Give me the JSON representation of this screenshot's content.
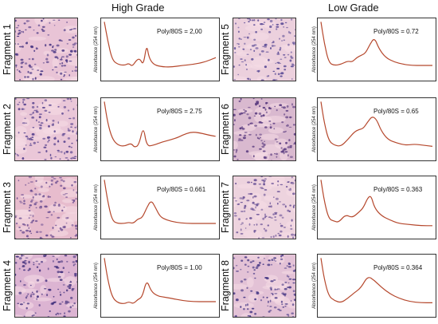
{
  "titles": {
    "high": "High Grade",
    "low": "Low Grade"
  },
  "yaxis_label": "Absorbance (254 nm)",
  "colors": {
    "trace": "#b5472c",
    "frame": "#333333"
  },
  "fragments": [
    {
      "label": "Fragment 1",
      "ratio": "Poly/80S = 2,00",
      "tissue": "#e9c4d6",
      "cells": "#4e3a86",
      "curve": [
        [
          0,
          0.02
        ],
        [
          0.03,
          0.35
        ],
        [
          0.07,
          0.7
        ],
        [
          0.12,
          0.78
        ],
        [
          0.18,
          0.8
        ],
        [
          0.22,
          0.76
        ],
        [
          0.25,
          0.82
        ],
        [
          0.29,
          0.7
        ],
        [
          0.32,
          0.68
        ],
        [
          0.35,
          0.8
        ],
        [
          0.38,
          0.42
        ],
        [
          0.4,
          0.66
        ],
        [
          0.44,
          0.78
        ],
        [
          0.5,
          0.82
        ],
        [
          0.6,
          0.83
        ],
        [
          0.7,
          0.8
        ],
        [
          0.8,
          0.78
        ],
        [
          0.9,
          0.74
        ],
        [
          1.0,
          0.66
        ]
      ]
    },
    {
      "label": "Fragment 2",
      "ratio": "Poly/80S = 2.75",
      "tissue": "#eac7d8",
      "cells": "#5a4590",
      "curve": [
        [
          0,
          0.02
        ],
        [
          0.03,
          0.4
        ],
        [
          0.07,
          0.68
        ],
        [
          0.12,
          0.8
        ],
        [
          0.18,
          0.82
        ],
        [
          0.24,
          0.76
        ],
        [
          0.27,
          0.84
        ],
        [
          0.31,
          0.8
        ],
        [
          0.35,
          0.45
        ],
        [
          0.38,
          0.82
        ],
        [
          0.44,
          0.8
        ],
        [
          0.52,
          0.74
        ],
        [
          0.6,
          0.7
        ],
        [
          0.66,
          0.66
        ],
        [
          0.7,
          0.62
        ],
        [
          0.78,
          0.56
        ],
        [
          0.86,
          0.58
        ],
        [
          0.94,
          0.62
        ],
        [
          1.0,
          0.64
        ]
      ]
    },
    {
      "label": "Fragment 3",
      "ratio": "Poly/80S = 0.661",
      "tissue": "#e7bccd",
      "cells": "#6d4f92",
      "curve": [
        [
          0,
          0.02
        ],
        [
          0.03,
          0.4
        ],
        [
          0.07,
          0.75
        ],
        [
          0.12,
          0.8
        ],
        [
          0.18,
          0.8
        ],
        [
          0.22,
          0.78
        ],
        [
          0.26,
          0.8
        ],
        [
          0.3,
          0.72
        ],
        [
          0.34,
          0.7
        ],
        [
          0.38,
          0.52
        ],
        [
          0.42,
          0.38
        ],
        [
          0.46,
          0.52
        ],
        [
          0.5,
          0.68
        ],
        [
          0.56,
          0.74
        ],
        [
          0.64,
          0.78
        ],
        [
          0.74,
          0.8
        ],
        [
          0.84,
          0.8
        ],
        [
          0.92,
          0.8
        ],
        [
          1.0,
          0.8
        ]
      ]
    },
    {
      "label": "Fragment 4",
      "ratio": "Poly/80S = 1.00",
      "tissue": "#dcb4d2",
      "cells": "#47357f",
      "curve": [
        [
          0,
          0.02
        ],
        [
          0.03,
          0.4
        ],
        [
          0.07,
          0.72
        ],
        [
          0.12,
          0.82
        ],
        [
          0.18,
          0.84
        ],
        [
          0.22,
          0.8
        ],
        [
          0.26,
          0.84
        ],
        [
          0.3,
          0.76
        ],
        [
          0.34,
          0.72
        ],
        [
          0.38,
          0.4
        ],
        [
          0.42,
          0.62
        ],
        [
          0.48,
          0.7
        ],
        [
          0.54,
          0.72
        ],
        [
          0.6,
          0.74
        ],
        [
          0.7,
          0.78
        ],
        [
          0.8,
          0.8
        ],
        [
          0.9,
          0.8
        ],
        [
          1.0,
          0.8
        ]
      ]
    },
    {
      "label": "Fragment 5",
      "ratio": "Poly/80S = 0.72",
      "tissue": "#ecd0dd",
      "cells": "#5c4c96",
      "curve": [
        [
          0,
          0.02
        ],
        [
          0.03,
          0.4
        ],
        [
          0.07,
          0.75
        ],
        [
          0.12,
          0.8
        ],
        [
          0.18,
          0.78
        ],
        [
          0.24,
          0.72
        ],
        [
          0.28,
          0.74
        ],
        [
          0.32,
          0.66
        ],
        [
          0.36,
          0.62
        ],
        [
          0.4,
          0.58
        ],
        [
          0.44,
          0.42
        ],
        [
          0.48,
          0.3
        ],
        [
          0.52,
          0.5
        ],
        [
          0.58,
          0.66
        ],
        [
          0.66,
          0.74
        ],
        [
          0.74,
          0.78
        ],
        [
          0.82,
          0.8
        ],
        [
          0.9,
          0.8
        ],
        [
          1.0,
          0.8
        ]
      ]
    },
    {
      "label": "Fragment 6",
      "ratio": "Poly/80S = 0.65",
      "tissue": "#d9b9cf",
      "cells": "#5a3b80",
      "curve": [
        [
          0,
          0.02
        ],
        [
          0.03,
          0.4
        ],
        [
          0.07,
          0.72
        ],
        [
          0.12,
          0.8
        ],
        [
          0.18,
          0.82
        ],
        [
          0.24,
          0.7
        ],
        [
          0.3,
          0.56
        ],
        [
          0.34,
          0.52
        ],
        [
          0.38,
          0.5
        ],
        [
          0.42,
          0.38
        ],
        [
          0.46,
          0.28
        ],
        [
          0.5,
          0.34
        ],
        [
          0.54,
          0.54
        ],
        [
          0.6,
          0.7
        ],
        [
          0.68,
          0.76
        ],
        [
          0.76,
          0.8
        ],
        [
          0.84,
          0.78
        ],
        [
          0.92,
          0.8
        ],
        [
          1.0,
          0.82
        ]
      ]
    },
    {
      "label": "Fragment 7",
      "ratio": "Poly/80S = 0.363",
      "tissue": "#edd3de",
      "cells": "#6a5296",
      "curve": [
        [
          0,
          0.02
        ],
        [
          0.03,
          0.4
        ],
        [
          0.07,
          0.72
        ],
        [
          0.12,
          0.76
        ],
        [
          0.16,
          0.78
        ],
        [
          0.22,
          0.64
        ],
        [
          0.28,
          0.7
        ],
        [
          0.34,
          0.6
        ],
        [
          0.38,
          0.52
        ],
        [
          0.42,
          0.34
        ],
        [
          0.45,
          0.3
        ],
        [
          0.48,
          0.52
        ],
        [
          0.54,
          0.66
        ],
        [
          0.62,
          0.74
        ],
        [
          0.7,
          0.8
        ],
        [
          0.8,
          0.82
        ],
        [
          0.9,
          0.84
        ],
        [
          1.0,
          0.84
        ]
      ]
    },
    {
      "label": "Fragment 8",
      "ratio": "Poly/80S = 0.364",
      "tissue": "#e3c2d6",
      "cells": "#4c3d88",
      "curve": [
        [
          0,
          0.02
        ],
        [
          0.03,
          0.4
        ],
        [
          0.07,
          0.7
        ],
        [
          0.12,
          0.78
        ],
        [
          0.18,
          0.82
        ],
        [
          0.24,
          0.74
        ],
        [
          0.3,
          0.64
        ],
        [
          0.36,
          0.55
        ],
        [
          0.42,
          0.34
        ],
        [
          0.48,
          0.42
        ],
        [
          0.54,
          0.54
        ],
        [
          0.62,
          0.66
        ],
        [
          0.7,
          0.74
        ],
        [
          0.8,
          0.8
        ],
        [
          0.9,
          0.82
        ],
        [
          1.0,
          0.82
        ]
      ]
    }
  ]
}
